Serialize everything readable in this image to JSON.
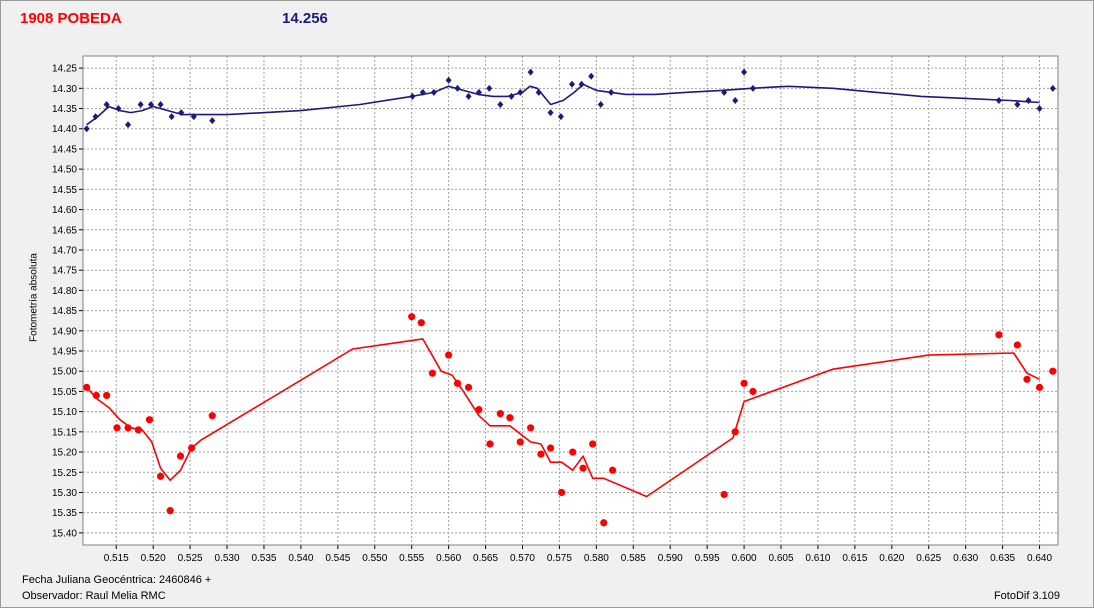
{
  "header": {
    "object_name": "1908 POBEDA",
    "magnitude": "14.256"
  },
  "footer": {
    "xlabel_prefix": "Fecha Juliana Geocéntrica:",
    "jd_base": "2460846 +",
    "observer_label": "Observador:",
    "observer_name": "Raul Melia RMC",
    "software": "FotoDif 3.109"
  },
  "colors": {
    "background": "#f0f0f0",
    "plot_area": "#ffffff",
    "grid": "#a0a0a0",
    "series_top": "#1a1a80",
    "series_bottom": "#ff0000",
    "title_red": "#ff0000",
    "title_blue": "#1a1a80"
  },
  "chart_data": {
    "type": "scatter",
    "ylabel": "Fotometría absoluta",
    "xlim": [
      0.5105,
      0.6425
    ],
    "ylim": [
      15.43,
      14.22
    ],
    "y_inverted": true,
    "grid": true,
    "x_ticks": [
      "0.515",
      "0.520",
      "0.525",
      "0.530",
      "0.535",
      "0.540",
      "0.545",
      "0.550",
      "0.555",
      "0.560",
      "0.565",
      "0.570",
      "0.575",
      "0.580",
      "0.585",
      "0.590",
      "0.595",
      "0.600",
      "0.605",
      "0.610",
      "0.615",
      "0.620",
      "0.625",
      "0.630",
      "0.635",
      "0.640"
    ],
    "y_ticks": [
      "14.25",
      "14.30",
      "14.35",
      "14.40",
      "14.45",
      "14.50",
      "14.55",
      "14.60",
      "14.65",
      "14.70",
      "14.75",
      "14.80",
      "14.85",
      "14.90",
      "14.95",
      "15.00",
      "15.05",
      "15.10",
      "15.15",
      "15.20",
      "15.25",
      "15.30",
      "15.35",
      "15.40"
    ],
    "series": [
      {
        "color": "#1a1a80",
        "marker": "diamond",
        "points": [
          [
            0.511,
            14.4
          ],
          [
            0.5122,
            14.37
          ],
          [
            0.5137,
            14.34
          ],
          [
            0.5153,
            14.35
          ],
          [
            0.5166,
            14.39
          ],
          [
            0.5183,
            14.34
          ],
          [
            0.5197,
            14.34
          ],
          [
            0.521,
            14.34
          ],
          [
            0.5225,
            14.37
          ],
          [
            0.5238,
            14.36
          ],
          [
            0.5255,
            14.37
          ],
          [
            0.528,
            14.38
          ],
          [
            0.5551,
            14.32
          ],
          [
            0.5565,
            14.31
          ],
          [
            0.558,
            14.31
          ],
          [
            0.56,
            14.28
          ],
          [
            0.5612,
            14.3
          ],
          [
            0.5627,
            14.32
          ],
          [
            0.5641,
            14.31
          ],
          [
            0.5655,
            14.3
          ],
          [
            0.567,
            14.34
          ],
          [
            0.5685,
            14.32
          ],
          [
            0.5697,
            14.31
          ],
          [
            0.5711,
            14.26
          ],
          [
            0.5722,
            14.31
          ],
          [
            0.5738,
            14.36
          ],
          [
            0.5752,
            14.37
          ],
          [
            0.5767,
            14.29
          ],
          [
            0.578,
            14.29
          ],
          [
            0.5793,
            14.27
          ],
          [
            0.5806,
            14.34
          ],
          [
            0.582,
            14.31
          ],
          [
            0.5973,
            14.31
          ],
          [
            0.5988,
            14.33
          ],
          [
            0.6,
            14.26
          ],
          [
            0.6012,
            14.3
          ],
          [
            0.6345,
            14.33
          ],
          [
            0.637,
            14.34
          ],
          [
            0.6385,
            14.33
          ],
          [
            0.64,
            14.35
          ],
          [
            0.6418,
            14.3
          ]
        ],
        "curve": [
          [
            0.511,
            14.39
          ],
          [
            0.5125,
            14.37
          ],
          [
            0.514,
            14.345
          ],
          [
            0.5155,
            14.355
          ],
          [
            0.517,
            14.36
          ],
          [
            0.5185,
            14.355
          ],
          [
            0.52,
            14.345
          ],
          [
            0.522,
            14.355
          ],
          [
            0.524,
            14.365
          ],
          [
            0.526,
            14.365
          ],
          [
            0.53,
            14.365
          ],
          [
            0.54,
            14.355
          ],
          [
            0.548,
            14.34
          ],
          [
            0.555,
            14.32
          ],
          [
            0.558,
            14.31
          ],
          [
            0.56,
            14.295
          ],
          [
            0.562,
            14.305
          ],
          [
            0.564,
            14.315
          ],
          [
            0.566,
            14.32
          ],
          [
            0.568,
            14.32
          ],
          [
            0.57,
            14.31
          ],
          [
            0.571,
            14.295
          ],
          [
            0.572,
            14.3
          ],
          [
            0.5738,
            14.34
          ],
          [
            0.5755,
            14.33
          ],
          [
            0.577,
            14.31
          ],
          [
            0.5782,
            14.29
          ],
          [
            0.58,
            14.305
          ],
          [
            0.584,
            14.315
          ],
          [
            0.588,
            14.315
          ],
          [
            0.592,
            14.31
          ],
          [
            0.597,
            14.305
          ],
          [
            0.601,
            14.3
          ],
          [
            0.606,
            14.295
          ],
          [
            0.612,
            14.3
          ],
          [
            0.618,
            14.31
          ],
          [
            0.624,
            14.32
          ],
          [
            0.63,
            14.325
          ],
          [
            0.636,
            14.33
          ],
          [
            0.64,
            14.335
          ]
        ]
      },
      {
        "color": "#ff0000",
        "marker": "circle",
        "points": [
          [
            0.511,
            15.04
          ],
          [
            0.5123,
            15.06
          ],
          [
            0.5137,
            15.06
          ],
          [
            0.5151,
            15.14
          ],
          [
            0.5166,
            15.14
          ],
          [
            0.518,
            15.145
          ],
          [
            0.5195,
            15.12
          ],
          [
            0.521,
            15.26
          ],
          [
            0.5223,
            15.345
          ],
          [
            0.5237,
            15.21
          ],
          [
            0.5252,
            15.19
          ],
          [
            0.528,
            15.11
          ],
          [
            0.555,
            14.865
          ],
          [
            0.5563,
            14.88
          ],
          [
            0.5578,
            15.005
          ],
          [
            0.56,
            14.96
          ],
          [
            0.5612,
            15.03
          ],
          [
            0.5627,
            15.04
          ],
          [
            0.5641,
            15.095
          ],
          [
            0.5656,
            15.18
          ],
          [
            0.567,
            15.105
          ],
          [
            0.5683,
            15.115
          ],
          [
            0.5697,
            15.175
          ],
          [
            0.5711,
            15.14
          ],
          [
            0.5725,
            15.205
          ],
          [
            0.5738,
            15.19
          ],
          [
            0.5753,
            15.3
          ],
          [
            0.5768,
            15.2
          ],
          [
            0.5782,
            15.24
          ],
          [
            0.5795,
            15.18
          ],
          [
            0.581,
            15.375
          ],
          [
            0.5822,
            15.245
          ],
          [
            0.5973,
            15.305
          ],
          [
            0.5988,
            15.15
          ],
          [
            0.6,
            15.03
          ],
          [
            0.6012,
            15.05
          ],
          [
            0.6345,
            14.91
          ],
          [
            0.637,
            14.935
          ],
          [
            0.6383,
            15.02
          ],
          [
            0.64,
            15.04
          ],
          [
            0.6418,
            15.0
          ]
        ],
        "curve": [
          [
            0.511,
            15.04
          ],
          [
            0.5125,
            15.07
          ],
          [
            0.514,
            15.09
          ],
          [
            0.5155,
            15.12
          ],
          [
            0.517,
            15.14
          ],
          [
            0.5185,
            15.145
          ],
          [
            0.5198,
            15.175
          ],
          [
            0.521,
            15.24
          ],
          [
            0.5223,
            15.27
          ],
          [
            0.5237,
            15.245
          ],
          [
            0.5252,
            15.19
          ],
          [
            0.5265,
            15.17
          ],
          [
            0.537,
            15.055
          ],
          [
            0.547,
            14.945
          ],
          [
            0.5565,
            14.92
          ],
          [
            0.559,
            15.0
          ],
          [
            0.5605,
            15.01
          ],
          [
            0.562,
            15.05
          ],
          [
            0.5641,
            15.11
          ],
          [
            0.5656,
            15.135
          ],
          [
            0.5683,
            15.135
          ],
          [
            0.5697,
            15.155
          ],
          [
            0.5711,
            15.175
          ],
          [
            0.5725,
            15.18
          ],
          [
            0.5738,
            15.225
          ],
          [
            0.5753,
            15.225
          ],
          [
            0.5768,
            15.245
          ],
          [
            0.5782,
            15.21
          ],
          [
            0.5795,
            15.265
          ],
          [
            0.581,
            15.265
          ],
          [
            0.5868,
            15.31
          ],
          [
            0.5985,
            15.165
          ],
          [
            0.6,
            15.075
          ],
          [
            0.612,
            14.995
          ],
          [
            0.625,
            14.96
          ],
          [
            0.6365,
            14.955
          ],
          [
            0.6383,
            15.005
          ],
          [
            0.64,
            15.02
          ]
        ]
      }
    ]
  }
}
